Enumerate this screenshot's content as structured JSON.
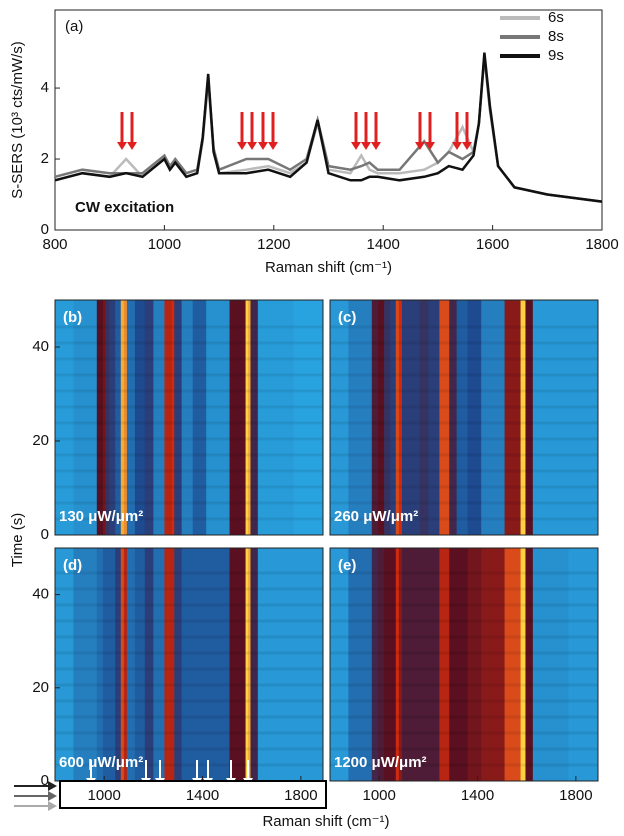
{
  "chart_data": [
    {
      "type": "line",
      "panel_label": "(a)",
      "annotation": "CW excitation",
      "xlabel": "Raman shift (cm⁻¹)",
      "ylabel": "S-SERS (10³ cts/mW/s)",
      "x": [
        800,
        850,
        900,
        930,
        960,
        1000,
        1010,
        1020,
        1040,
        1060,
        1070,
        1080,
        1090,
        1100,
        1150,
        1190,
        1230,
        1260,
        1280,
        1300,
        1340,
        1360,
        1375,
        1390,
        1430,
        1475,
        1500,
        1520,
        1545,
        1565,
        1575,
        1585,
        1595,
        1610,
        1640,
        1700,
        1800
      ],
      "series": [
        {
          "name": "6s",
          "color": "#bbbbbb",
          "values": [
            1.4,
            1.6,
            1.5,
            2.0,
            1.5,
            2.0,
            1.7,
            1.9,
            1.5,
            1.6,
            2.5,
            4.2,
            2.2,
            1.6,
            1.7,
            1.8,
            1.6,
            1.9,
            3.0,
            1.7,
            1.6,
            2.1,
            1.7,
            1.6,
            1.6,
            1.7,
            1.9,
            2.2,
            2.9,
            2.2,
            3.0,
            4.9,
            3.4,
            1.8,
            1.2,
            1.0,
            0.8
          ]
        },
        {
          "name": "8s",
          "color": "#777777",
          "values": [
            1.5,
            1.7,
            1.6,
            1.6,
            1.6,
            2.1,
            1.8,
            2.0,
            1.6,
            1.7,
            2.6,
            4.3,
            2.3,
            1.7,
            2.0,
            2.0,
            1.7,
            2.0,
            3.1,
            1.8,
            1.7,
            1.8,
            1.9,
            1.7,
            1.7,
            2.5,
            1.9,
            2.2,
            2.0,
            2.2,
            3.0,
            4.9,
            3.4,
            1.8,
            1.2,
            1.0,
            0.8
          ]
        },
        {
          "name": "9s",
          "color": "#111111",
          "values": [
            1.4,
            1.6,
            1.5,
            1.6,
            1.5,
            2.0,
            1.7,
            1.9,
            1.5,
            1.6,
            2.6,
            4.4,
            2.2,
            1.6,
            1.6,
            1.7,
            1.5,
            1.9,
            3.1,
            1.6,
            1.4,
            1.4,
            1.5,
            1.5,
            1.4,
            1.5,
            1.6,
            1.8,
            1.7,
            2.1,
            3.0,
            5.0,
            3.5,
            1.8,
            1.2,
            1.0,
            0.8
          ]
        }
      ],
      "xlim": [
        800,
        1800
      ],
      "xticks": [
        800,
        1000,
        1200,
        1400,
        1600,
        1800
      ],
      "ylim": [
        0,
        6.2
      ],
      "yticks": [
        0,
        2,
        4
      ]
    },
    {
      "type": "heatmap",
      "panel_label": "(b)",
      "annotation": "130 μW/μm²",
      "xlim": [
        800,
        1890
      ],
      "ylim": [
        0,
        50
      ],
      "yticks": [
        0,
        20,
        40
      ],
      "colormap": [
        "#29a3df",
        "#1e4a90",
        "#5a1020",
        "#d02a10",
        "#ffd040"
      ],
      "x": [
        800,
        950,
        990,
        1000,
        1010,
        1030,
        1060,
        1075,
        1085,
        1100,
        1150,
        1180,
        1220,
        1270,
        1280,
        1290,
        1340,
        1380,
        1450,
        1570,
        1580,
        1590,
        1600,
        1650,
        1890
      ],
      "values": [
        0.02,
        0.05,
        0.5,
        0.55,
        0.35,
        0.3,
        0.2,
        0.95,
        0.9,
        0.15,
        0.25,
        0.3,
        0.1,
        0.7,
        0.75,
        0.3,
        0.1,
        0.2,
        0.05,
        0.5,
        1.0,
        0.95,
        0.4,
        0.02,
        0.0
      ]
    },
    {
      "type": "heatmap",
      "panel_label": "(c)",
      "annotation": "260 μW/μm²",
      "xlim": [
        800,
        1890
      ],
      "ylim": [
        0,
        50
      ],
      "colormap": [
        "#29a3df",
        "#1e4a90",
        "#5a1020",
        "#d02a10",
        "#ffd040"
      ],
      "x": [
        800,
        950,
        990,
        1000,
        1010,
        1030,
        1060,
        1075,
        1085,
        1100,
        1150,
        1180,
        1220,
        1270,
        1280,
        1290,
        1340,
        1380,
        1450,
        1570,
        1580,
        1590,
        1600,
        1650,
        1890
      ],
      "values": [
        0.03,
        0.1,
        0.45,
        0.5,
        0.5,
        0.35,
        0.3,
        0.8,
        0.75,
        0.3,
        0.3,
        0.35,
        0.3,
        0.8,
        0.8,
        0.4,
        0.2,
        0.25,
        0.1,
        0.6,
        1.0,
        1.0,
        0.5,
        0.03,
        0.03
      ]
    },
    {
      "type": "heatmap",
      "panel_label": "(d)",
      "annotation": "600 μW/μm²",
      "xlabel": "Raman shift (cm⁻¹)",
      "ylabel": "Time (s)",
      "xlim": [
        800,
        1890
      ],
      "ylim": [
        0,
        50
      ],
      "xticks": [
        1000,
        1400,
        1800
      ],
      "yticks": [
        0,
        20,
        40
      ],
      "colormap": [
        "#29a3df",
        "#1e4a90",
        "#5a1020",
        "#d02a10",
        "#ffd040"
      ],
      "x": [
        800,
        950,
        990,
        1000,
        1010,
        1030,
        1060,
        1075,
        1085,
        1100,
        1150,
        1180,
        1220,
        1270,
        1280,
        1290,
        1340,
        1380,
        1450,
        1570,
        1580,
        1590,
        1600,
        1650,
        1890
      ],
      "values": [
        0.03,
        0.1,
        0.15,
        0.2,
        0.2,
        0.2,
        0.3,
        0.8,
        0.7,
        0.15,
        0.2,
        0.3,
        0.15,
        0.7,
        0.7,
        0.3,
        0.2,
        0.2,
        0.2,
        0.5,
        1.0,
        0.95,
        0.4,
        0.03,
        0.03
      ]
    },
    {
      "type": "heatmap",
      "panel_label": "(e)",
      "annotation": "1200 μW/μm²",
      "xlim": [
        800,
        1890
      ],
      "ylim": [
        0,
        50
      ],
      "xticks": [
        1000,
        1400,
        1800
      ],
      "colormap": [
        "#29a3df",
        "#1e4a90",
        "#5a1020",
        "#d02a10",
        "#ffd040"
      ],
      "x": [
        800,
        950,
        990,
        1000,
        1010,
        1030,
        1060,
        1075,
        1085,
        1100,
        1150,
        1180,
        1220,
        1270,
        1280,
        1290,
        1340,
        1380,
        1450,
        1570,
        1580,
        1590,
        1600,
        1650,
        1890
      ],
      "values": [
        0.03,
        0.15,
        0.4,
        0.45,
        0.45,
        0.5,
        0.5,
        0.75,
        0.6,
        0.45,
        0.45,
        0.45,
        0.45,
        0.7,
        0.7,
        0.5,
        0.5,
        0.55,
        0.6,
        0.8,
        1.0,
        1.0,
        0.5,
        0.05,
        0.03
      ]
    }
  ]
}
